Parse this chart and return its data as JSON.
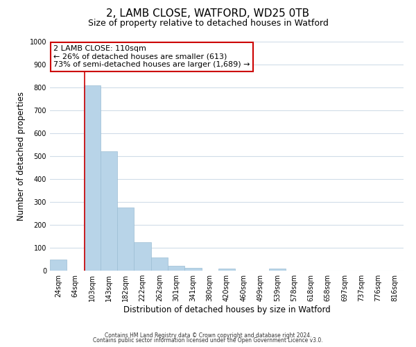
{
  "title": "2, LAMB CLOSE, WATFORD, WD25 0TB",
  "subtitle": "Size of property relative to detached houses in Watford",
  "xlabel": "Distribution of detached houses by size in Watford",
  "ylabel": "Number of detached properties",
  "bar_labels": [
    "24sqm",
    "64sqm",
    "103sqm",
    "143sqm",
    "182sqm",
    "222sqm",
    "262sqm",
    "301sqm",
    "341sqm",
    "380sqm",
    "420sqm",
    "460sqm",
    "499sqm",
    "539sqm",
    "578sqm",
    "618sqm",
    "658sqm",
    "697sqm",
    "737sqm",
    "776sqm",
    "816sqm"
  ],
  "bar_values": [
    47,
    0,
    810,
    520,
    275,
    125,
    58,
    22,
    12,
    0,
    10,
    0,
    0,
    8,
    0,
    0,
    0,
    0,
    0,
    0,
    0
  ],
  "bar_color": "#b8d4e8",
  "bar_edge_color": "#9bbdd4",
  "redline_index": 1.575,
  "ylim": [
    0,
    1000
  ],
  "yticks": [
    0,
    100,
    200,
    300,
    400,
    500,
    600,
    700,
    800,
    900,
    1000
  ],
  "annotation_text": "2 LAMB CLOSE: 110sqm\n← 26% of detached houses are smaller (613)\n73% of semi-detached houses are larger (1,689) →",
  "annotation_box_color": "#ffffff",
  "annotation_box_edge": "#cc0000",
  "footer_line1": "Contains HM Land Registry data © Crown copyright and database right 2024.",
  "footer_line2": "Contains public sector information licensed under the Open Government Licence v3.0.",
  "background_color": "#ffffff",
  "grid_color": "#d0dce8",
  "title_fontsize": 11,
  "subtitle_fontsize": 9,
  "tick_fontsize": 7,
  "ylabel_fontsize": 8.5,
  "xlabel_fontsize": 8.5,
  "annotation_fontsize": 8,
  "footer_fontsize": 5.5
}
